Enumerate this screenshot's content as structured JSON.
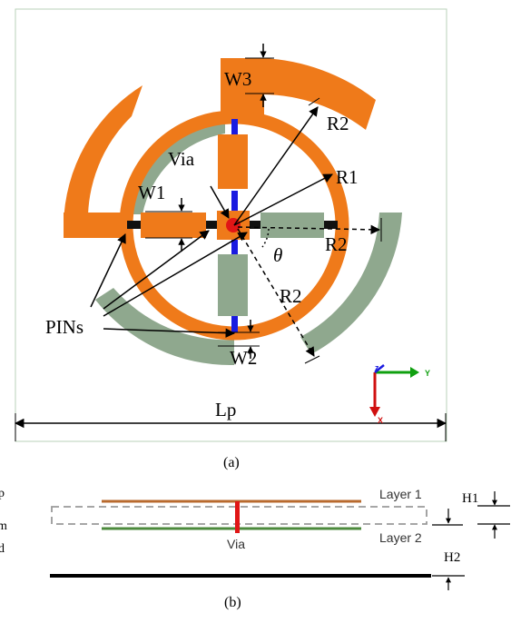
{
  "figure_a": {
    "caption": "(a)",
    "labels": {
      "w3": "W3",
      "r2_top": "R2",
      "via": "Via",
      "r1": "R1",
      "w1": "W1",
      "r2_right": "R2",
      "theta": "θ",
      "r2_lower": "R2",
      "pins": "PINs",
      "w2": "W2",
      "lp": "Lp"
    },
    "axes": {
      "z": "z",
      "y": "Y",
      "x": "X"
    },
    "colors": {
      "active": "#ef7a1a",
      "inactive": "#8fa88e",
      "diode": "#111111",
      "bias": "#1a1ae0",
      "via": "#e01616",
      "border": "#b8d2b8"
    }
  },
  "figure_b": {
    "caption": "(b)",
    "labels": {
      "layer1": "Layer 1",
      "layer2": "Layer 2",
      "via": "Via",
      "h1": "H1",
      "h2": "H2",
      "clip1": "p",
      "clip2": "m",
      "clip3": "d"
    }
  }
}
